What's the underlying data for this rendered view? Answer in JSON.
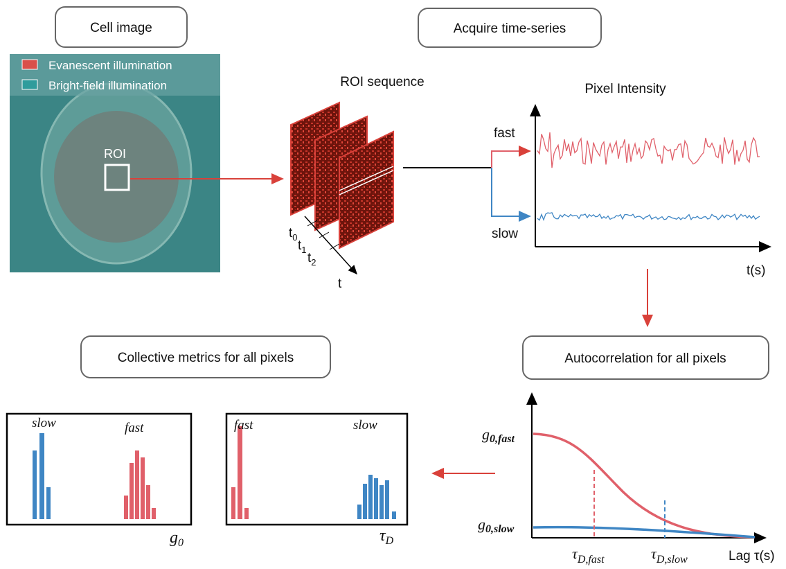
{
  "headers": {
    "cell_image": "Cell image",
    "acquire": "Acquire time-series",
    "collective": "Collective metrics for all pixels",
    "autocorrelation": "Autocorrelation for all pixels"
  },
  "cell_panel": {
    "legend": [
      "Evanescent illumination",
      "Bright-field illumination"
    ],
    "roi": "ROI"
  },
  "roi_sequence": {
    "title": "ROI sequence",
    "time_labels": [
      {
        "base": "t",
        "sub": "0"
      },
      {
        "base": "t",
        "sub": "1"
      },
      {
        "base": "t",
        "sub": "2"
      }
    ],
    "axis": "t"
  },
  "intensity": {
    "title": "Pixel Intensity",
    "fast": "fast",
    "slow": "slow",
    "x_label": "t(s)"
  },
  "histograms": [
    {
      "labels": [
        "slow",
        "fast"
      ],
      "axis": {
        "base": "g",
        "sub": "0"
      }
    },
    {
      "labels": [
        "fast",
        "slow"
      ],
      "axis": {
        "base": "τ",
        "sub": "D"
      }
    }
  ],
  "autocorr": {
    "g_fast": {
      "base": "g",
      "sub": "0,fast"
    },
    "g_slow": {
      "base": "g",
      "sub": "0,slow"
    },
    "tau_fast": {
      "base": "τ",
      "sub": "D,fast"
    },
    "tau_slow": {
      "base": "τ",
      "sub": "D,slow"
    },
    "x_label": "Lag τ(s)"
  }
}
